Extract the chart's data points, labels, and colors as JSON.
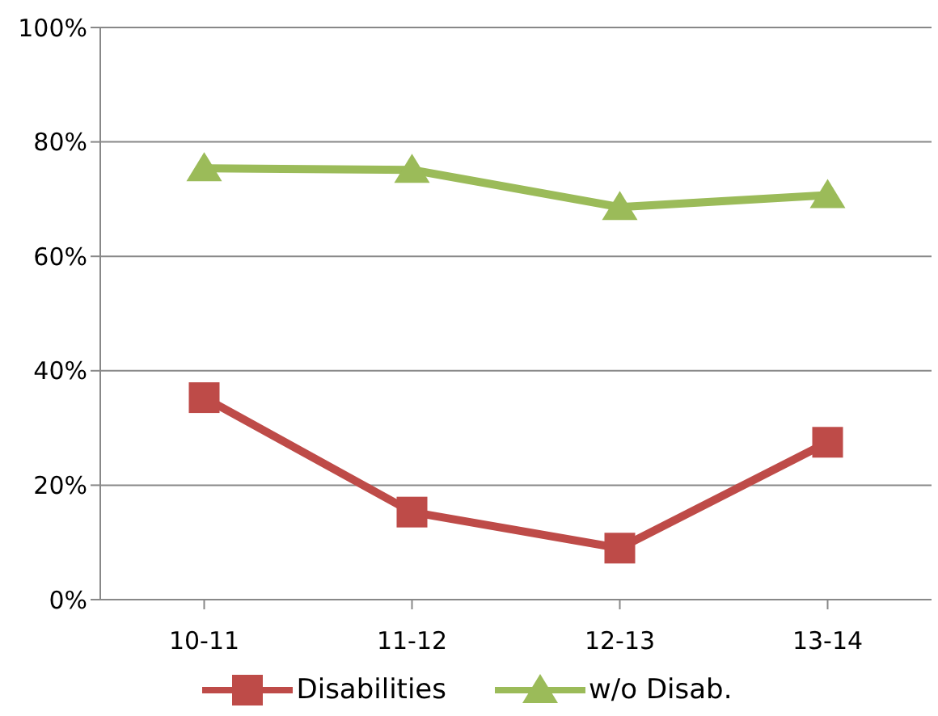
{
  "chart_data": {
    "type": "line",
    "categories": [
      "10-11",
      "11-12",
      "12-13",
      "13-14"
    ],
    "series": [
      {
        "name": "Disabilities",
        "color": "#be4b48",
        "marker": "square",
        "values": [
          35.3,
          15.3,
          9.0,
          27.5
        ]
      },
      {
        "name": "w/o Disab.",
        "color": "#9bbb59",
        "marker": "triangle",
        "values": [
          75.4,
          75.1,
          68.6,
          70.7
        ]
      }
    ],
    "ylim": [
      0,
      100
    ],
    "yticks": [
      {
        "value": 0,
        "label": "0%"
      },
      {
        "value": 20,
        "label": "20%"
      },
      {
        "value": 40,
        "label": "40%"
      },
      {
        "value": 60,
        "label": "60%"
      },
      {
        "value": 80,
        "label": "80%"
      },
      {
        "value": 100,
        "label": "100%"
      }
    ],
    "grid": "y",
    "legend": "bottom",
    "line_style": "solid"
  }
}
